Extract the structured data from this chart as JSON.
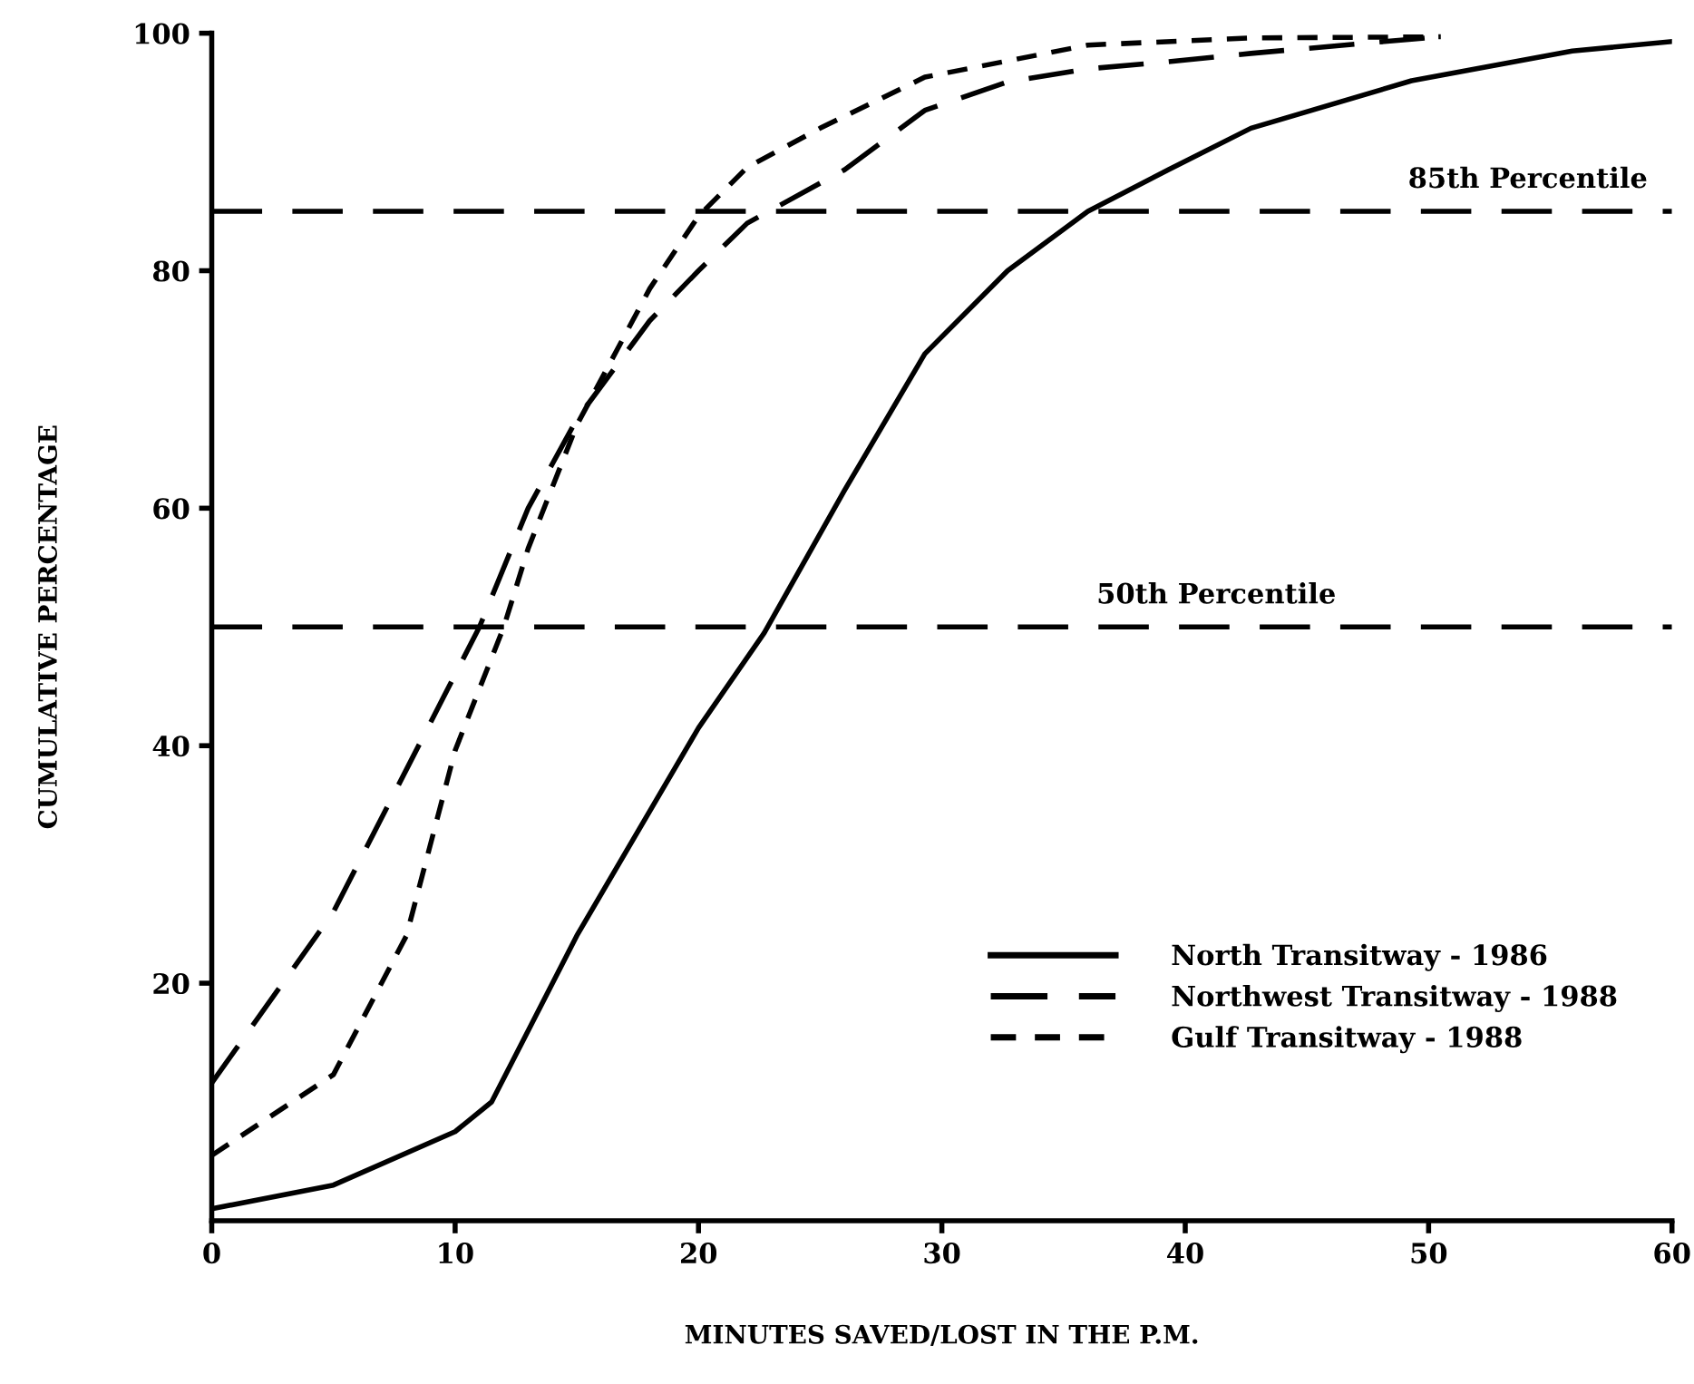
{
  "chart_data": {
    "type": "line",
    "xlabel": "MINUTES SAVED/LOST IN THE P.M.",
    "ylabel": "CUMULATIVE PERCENTAGE",
    "xlim": [
      0,
      60
    ],
    "ylim": [
      0,
      100
    ],
    "xticks": [
      0,
      10,
      20,
      30,
      40,
      50,
      60
    ],
    "yticks": [
      20,
      40,
      60,
      80,
      100
    ],
    "legend": "bottom right",
    "grid": false,
    "ref_lines": [
      {
        "axis": "y",
        "value": 85,
        "label": "85th Percentile",
        "color": "#000000",
        "line_style": "dashed"
      },
      {
        "axis": "y",
        "value": 50,
        "label": "50th Percentile",
        "color": "#000000",
        "line_style": "dashed"
      }
    ],
    "series": [
      {
        "name": "North Transitway - 1986",
        "color": "#000000",
        "line_style": "solid",
        "x": [
          0,
          5,
          10,
          11.5,
          13,
          15,
          20,
          22.7,
          26,
          29.3,
          32.7,
          36,
          39.3,
          42.7,
          49.3,
          55.9,
          60
        ],
        "values": [
          1,
          3,
          7.5,
          10,
          16,
          24,
          41.5,
          49.5,
          61.5,
          73,
          80,
          85,
          88.5,
          92,
          96,
          98.5,
          99.3
        ]
      },
      {
        "name": "Northwest Transitway - 1988",
        "color": "#000000",
        "line_style": "dashed",
        "x": [
          0,
          5,
          10,
          11,
          13,
          15,
          18,
          20,
          22,
          26,
          29.3,
          32.7,
          36,
          39.3,
          42.7,
          49.3,
          50.5
        ],
        "values": [
          11.6,
          26,
          46,
          50,
          60,
          67.5,
          75.8,
          80,
          84,
          88.5,
          93.5,
          95.9,
          97,
          97.6,
          98.3,
          99.5,
          99.7
        ]
      },
      {
        "name": "Gulf Transitway - 1988",
        "color": "#000000",
        "line_style": "dotted",
        "x": [
          0,
          5,
          8,
          10,
          12,
          13,
          15,
          18,
          20,
          22,
          25,
          29.3,
          36,
          42.7,
          50.5
        ],
        "values": [
          5.5,
          12.3,
          24,
          39.6,
          50,
          56.6,
          67,
          78.5,
          84.6,
          88.7,
          92,
          96.3,
          99,
          99.6,
          99.7
        ]
      }
    ]
  }
}
